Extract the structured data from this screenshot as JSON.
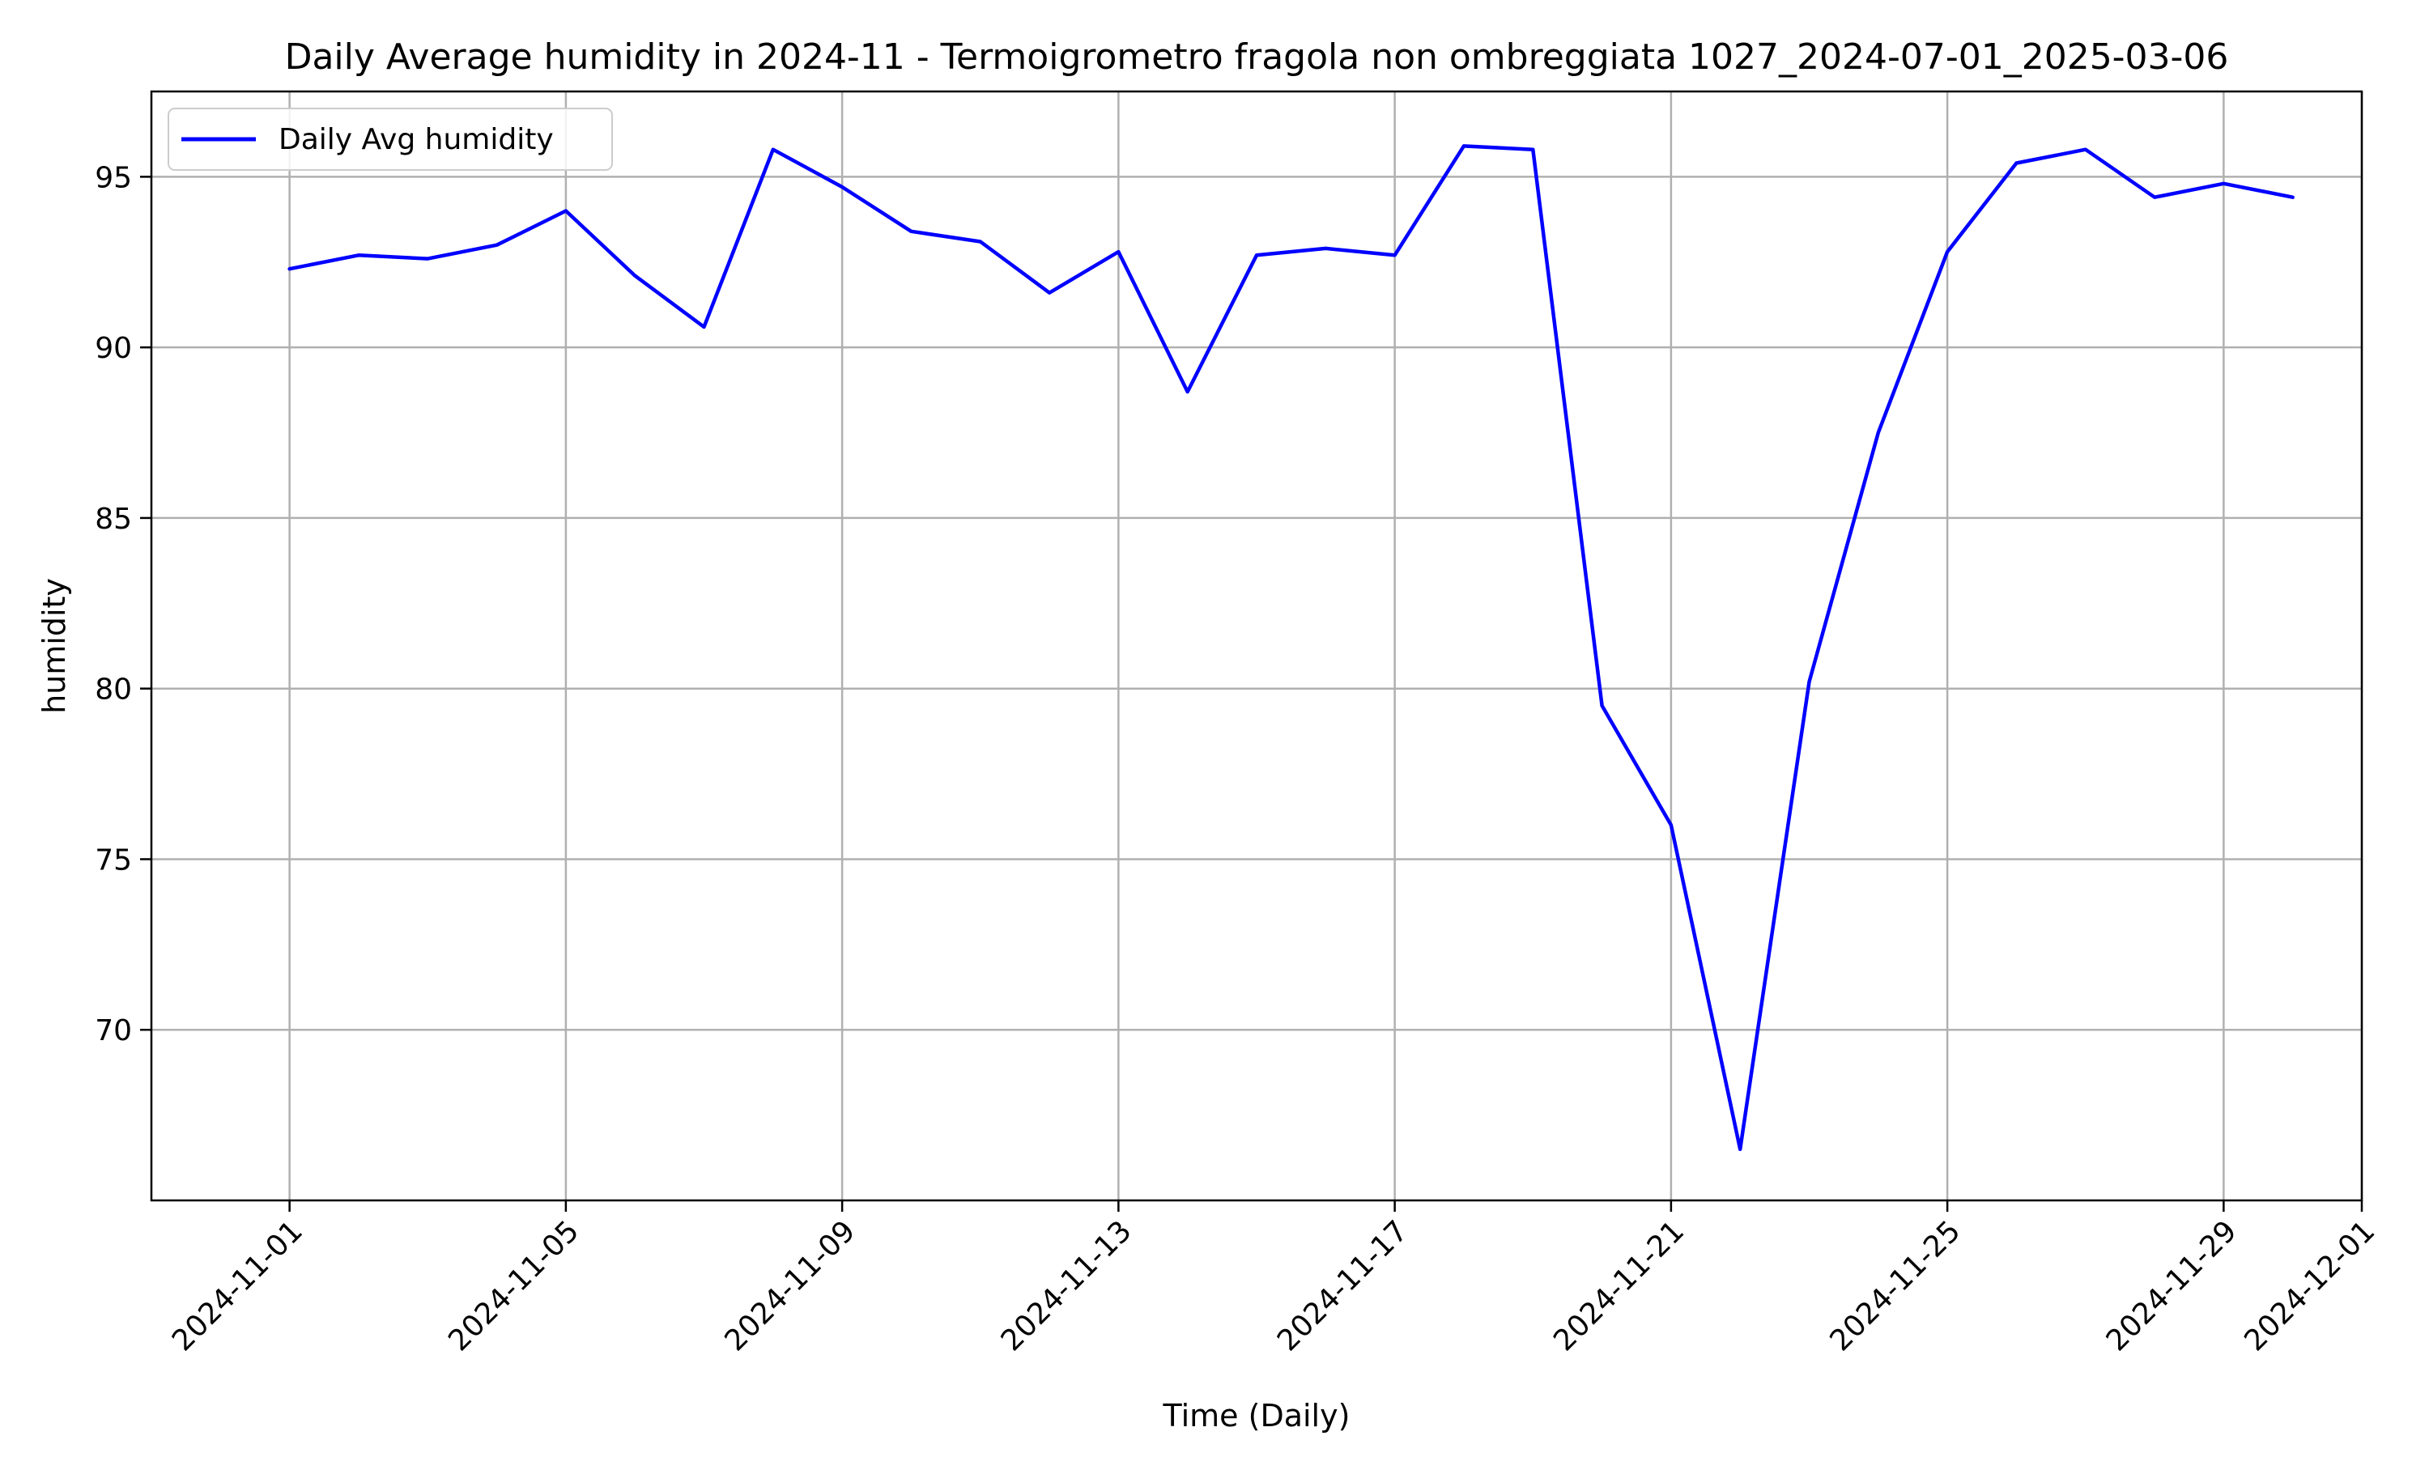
{
  "chart_data": {
    "type": "line",
    "title": "Daily Average humidity in 2024-11 - Termoigrometro fragola non ombreggiata 1027_2024-07-01_2025-03-06",
    "xlabel": "Time (Daily)",
    "ylabel": "humidity",
    "x_type": "date",
    "xlim": [
      "2024-10-30",
      "2024-12-01"
    ],
    "ylim": [
      65,
      97.5
    ],
    "x_ticks": [
      "2024-11-01",
      "2024-11-05",
      "2024-11-09",
      "2024-11-13",
      "2024-11-17",
      "2024-11-21",
      "2024-11-25",
      "2024-11-29",
      "2024-12-01"
    ],
    "y_ticks": [
      70,
      75,
      80,
      85,
      90,
      95
    ],
    "grid": true,
    "legend_position": "top-left",
    "series": [
      {
        "name": "Daily Avg humidity",
        "color": "#0000ff",
        "x": [
          "2024-11-01",
          "2024-11-02",
          "2024-11-03",
          "2024-11-04",
          "2024-11-05",
          "2024-11-06",
          "2024-11-07",
          "2024-11-08",
          "2024-11-09",
          "2024-11-10",
          "2024-11-11",
          "2024-11-12",
          "2024-11-13",
          "2024-11-14",
          "2024-11-15",
          "2024-11-16",
          "2024-11-17",
          "2024-11-18",
          "2024-11-19",
          "2024-11-20",
          "2024-11-21",
          "2024-11-22",
          "2024-11-23",
          "2024-11-24",
          "2024-11-25",
          "2024-11-26",
          "2024-11-27",
          "2024-11-28",
          "2024-11-29",
          "2024-11-30"
        ],
        "values": [
          92.3,
          92.7,
          92.6,
          93.0,
          94.0,
          92.1,
          90.6,
          95.8,
          94.7,
          93.4,
          93.1,
          91.6,
          92.8,
          88.7,
          92.7,
          92.9,
          92.7,
          95.9,
          95.8,
          79.5,
          76.0,
          66.5,
          80.2,
          87.5,
          92.8,
          95.4,
          95.8,
          94.4,
          94.8,
          94.4
        ]
      }
    ]
  }
}
